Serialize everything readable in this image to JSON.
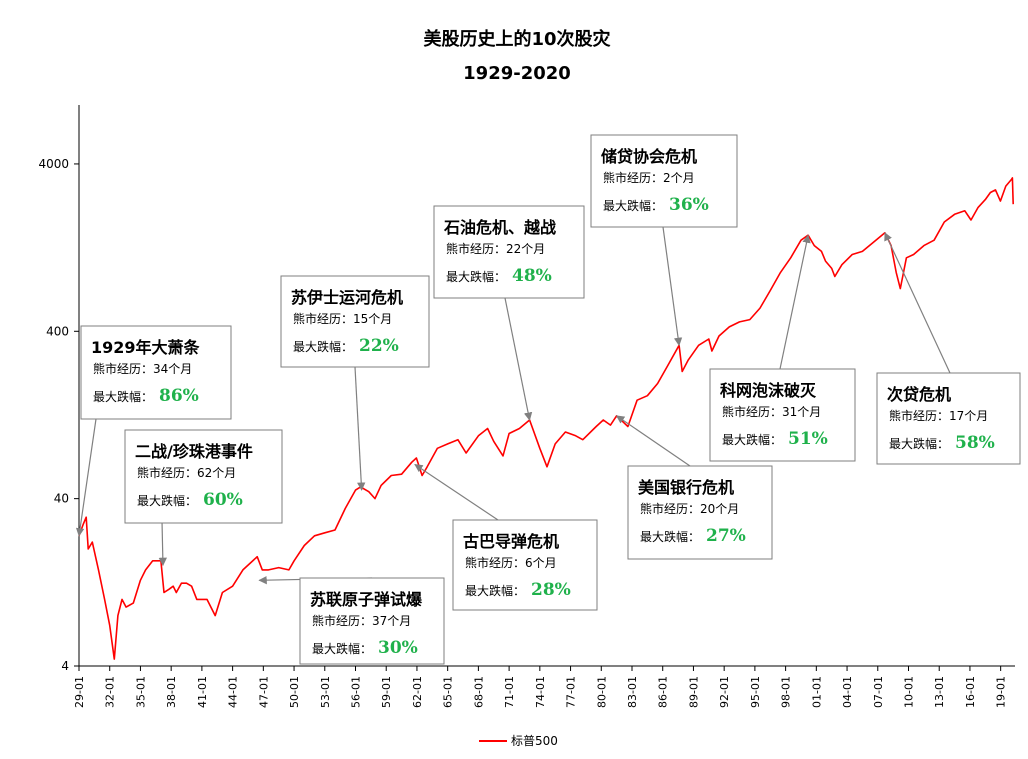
{
  "chart_data": {
    "type": "line",
    "title": "美股历史上的10次股灾",
    "subtitle": "1929-2020",
    "y_scale": "log",
    "ylim": [
      4,
      9000
    ],
    "yticks": [
      {
        "value": 4,
        "label": "4"
      },
      {
        "value": 40,
        "label": "40"
      },
      {
        "value": 400,
        "label": "400"
      },
      {
        "value": 4000,
        "label": "4000"
      }
    ],
    "x_range": [
      1929.0,
      2020.4
    ],
    "xtick_labels": [
      "29-01",
      "32-01",
      "35-01",
      "38-01",
      "41-01",
      "44-01",
      "47-01",
      "50-01",
      "53-01",
      "56-01",
      "59-01",
      "62-01",
      "65-01",
      "68-01",
      "71-01",
      "74-01",
      "77-01",
      "80-01",
      "83-01",
      "86-01",
      "89-01",
      "92-01",
      "95-01",
      "98-01",
      "01-01",
      "04-01",
      "07-01",
      "10-01",
      "13-01",
      "16-01",
      "19-01"
    ],
    "series": [
      {
        "name": "标普500",
        "color": "#ff0000",
        "x": [
          1929.0,
          1929.4,
          1929.7,
          1929.9,
          1930.3,
          1930.9,
          1931.5,
          1932.0,
          1932.45,
          1932.8,
          1933.2,
          1933.6,
          1934.3,
          1935.0,
          1935.5,
          1936.2,
          1937.0,
          1937.3,
          1937.8,
          1938.2,
          1938.5,
          1939.0,
          1939.5,
          1940.0,
          1940.5,
          1941.0,
          1941.5,
          1942.3,
          1943.0,
          1944.0,
          1945.0,
          1946.4,
          1946.9,
          1947.5,
          1948.5,
          1949.5,
          1950.0,
          1951.0,
          1952.0,
          1953.0,
          1954.0,
          1955.0,
          1956.0,
          1956.5,
          1957.3,
          1957.9,
          1958.5,
          1959.5,
          1960.5,
          1961.5,
          1961.95,
          1962.5,
          1963.0,
          1964.0,
          1965.0,
          1966.0,
          1966.8,
          1968.0,
          1968.9,
          1969.5,
          1970.4,
          1971.0,
          1972.0,
          1973.0,
          1974.0,
          1974.7,
          1975.5,
          1976.5,
          1977.5,
          1978.2,
          1979.5,
          1980.2,
          1980.9,
          1981.5,
          1982.6,
          1983.5,
          1984.5,
          1985.5,
          1986.5,
          1987.6,
          1987.9,
          1988.5,
          1989.5,
          1990.5,
          1990.8,
          1991.5,
          1992.5,
          1993.5,
          1994.5,
          1995.5,
          1996.5,
          1997.5,
          1998.5,
          1999.5,
          2000.2,
          2000.8,
          2001.5,
          2001.9,
          2002.5,
          2002.8,
          2003.5,
          2004.5,
          2005.5,
          2006.5,
          2007.7,
          2008.3,
          2008.8,
          2009.2,
          2009.8,
          2010.5,
          2011.5,
          2012.5,
          2013.5,
          2014.5,
          2015.5,
          2016.1,
          2016.8,
          2017.5,
          2018.0,
          2018.5,
          2018.97,
          2019.5,
          2020.05,
          2020.15,
          2020.22
        ],
        "y": [
          24,
          28,
          31,
          20,
          22,
          15,
          10,
          7,
          4.4,
          8,
          10,
          9,
          9.5,
          13,
          15,
          17,
          17,
          11,
          11.5,
          12,
          11,
          12.5,
          12.5,
          12,
          10,
          10,
          10,
          8,
          11,
          12,
          15,
          18,
          15,
          15,
          15.5,
          15,
          17,
          21,
          24,
          25,
          26,
          35,
          45,
          47,
          44,
          40,
          48,
          55,
          56,
          66,
          70,
          55,
          62,
          80,
          85,
          90,
          75,
          95,
          105,
          88,
          72,
          98,
          105,
          118,
          80,
          62,
          85,
          100,
          95,
          90,
          108,
          118,
          110,
          125,
          108,
          155,
          165,
          195,
          250,
          330,
          230,
          270,
          330,
          360,
          305,
          375,
          425,
          455,
          470,
          550,
          700,
          900,
          1100,
          1400,
          1500,
          1300,
          1200,
          1050,
          950,
          850,
          1000,
          1150,
          1200,
          1350,
          1550,
          1300,
          900,
          720,
          1100,
          1150,
          1300,
          1400,
          1800,
          2000,
          2100,
          1850,
          2200,
          2450,
          2700,
          2800,
          2400,
          2950,
          3230,
          3300,
          2300
        ]
      }
    ],
    "annotations": [
      {
        "title": "1929年大萧条",
        "duration_label": "熊市经历：",
        "duration": "34个月",
        "drop_label": "最大跌幅：",
        "drop": "86%",
        "target_x": 1929.0,
        "target_y": 24
      },
      {
        "title": "二战/珍珠港事件",
        "duration_label": "熊市经历：",
        "duration": "62个月",
        "drop_label": "最大跌幅：",
        "drop": "60%",
        "target_x": 1937.2,
        "target_y": 16
      },
      {
        "title": "苏联原子弹试爆",
        "duration_label": "熊市经历：",
        "duration": "37个月",
        "drop_label": "最大跌幅：",
        "drop": "30%",
        "target_x": 1946.6,
        "target_y": 13
      },
      {
        "title": "苏伊士运河危机",
        "duration_label": "熊市经历：",
        "duration": "15个月",
        "drop_label": "最大跌幅：",
        "drop": "22%",
        "target_x": 1956.6,
        "target_y": 45
      },
      {
        "title": "古巴导弹危机",
        "duration_label": "熊市经历：",
        "duration": "6个月",
        "drop_label": "最大跌幅：",
        "drop": "28%",
        "target_x": 1961.8,
        "target_y": 64
      },
      {
        "title": "石油危机、越战",
        "duration_label": "熊市经历：",
        "duration": "22个月",
        "drop_label": "最大跌幅：",
        "drop": "48%",
        "target_x": 1973.0,
        "target_y": 118
      },
      {
        "title": "美国银行危机",
        "duration_label": "熊市经历：",
        "duration": "20个月",
        "drop_label": "最大跌幅：",
        "drop": "27%",
        "target_x": 1981.5,
        "target_y": 125
      },
      {
        "title": "储贷协会危机",
        "duration_label": "熊市经历：",
        "duration": "2个月",
        "drop_label": "最大跌幅：",
        "drop": "36%",
        "target_x": 1987.6,
        "target_y": 330
      },
      {
        "title": "科网泡沫破灭",
        "duration_label": "熊市经历：",
        "duration": "31个月",
        "drop_label": "最大跌幅：",
        "drop": "51%",
        "target_x": 2000.2,
        "target_y": 1500
      },
      {
        "title": "次贷危机",
        "duration_label": "熊市经历：",
        "duration": "17个月",
        "drop_label": "最大跌幅：",
        "drop": "58%",
        "target_x": 2007.7,
        "target_y": 1550
      }
    ],
    "legend": {
      "position": "bottom-center",
      "label": "标普500"
    },
    "grid": false
  }
}
